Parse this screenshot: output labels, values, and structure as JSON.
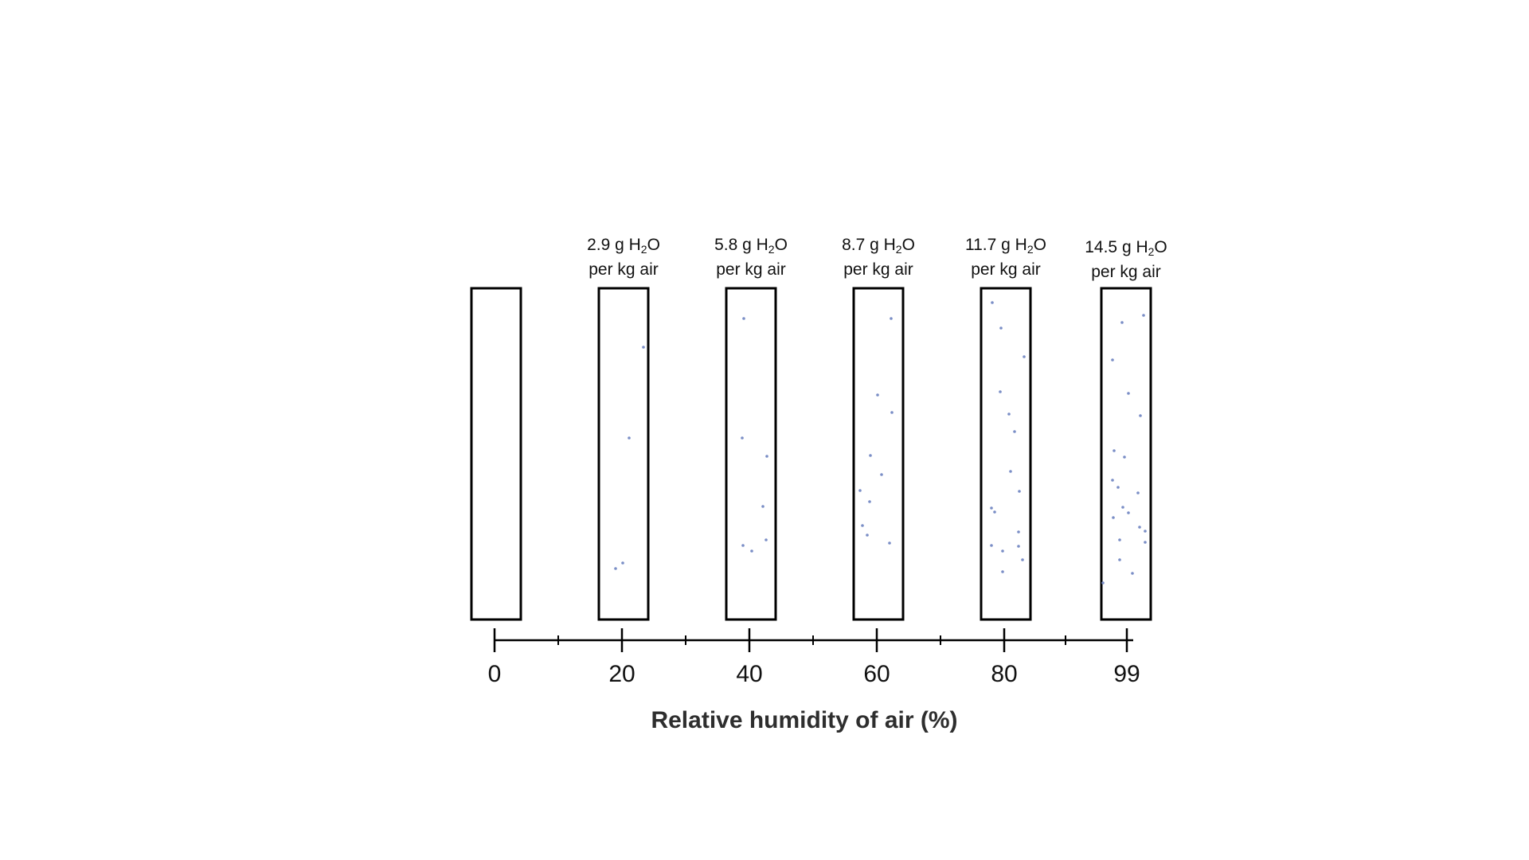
{
  "diagram": {
    "axis_title": "Relative humidity of air (%)",
    "axis_range": [
      0,
      99
    ],
    "colors": {
      "outline": "#000000",
      "droplet": "#7a8ec6",
      "text": "#111111",
      "title": "#2e2e2e"
    },
    "columns": [
      {
        "humidity": 0,
        "tick_label": "0",
        "amount": "",
        "unit_prefix": "",
        "unit_sub": "",
        "unit_suffix": "",
        "per": ""
      },
      {
        "humidity": 20,
        "tick_label": "20",
        "amount": "2.9",
        "unit_prefix": "g H",
        "unit_sub": "2",
        "unit_suffix": "O",
        "per": "per kg air"
      },
      {
        "humidity": 40,
        "tick_label": "40",
        "amount": "5.8",
        "unit_prefix": "g H",
        "unit_sub": "2",
        "unit_suffix": "O",
        "per": "per kg air"
      },
      {
        "humidity": 60,
        "tick_label": "60",
        "amount": "8.7",
        "unit_prefix": "g H",
        "unit_sub": "2",
        "unit_suffix": "O",
        "per": "per kg air"
      },
      {
        "humidity": 80,
        "tick_label": "80",
        "amount": "11.7",
        "unit_prefix": "g H",
        "unit_sub": "2",
        "unit_suffix": "O",
        "per": "per kg air"
      },
      {
        "humidity": 99,
        "tick_label": "99",
        "amount": "14.5",
        "unit_prefix": "g H",
        "unit_sub": "2",
        "unit_suffix": "O",
        "per": "per kg air"
      }
    ]
  }
}
